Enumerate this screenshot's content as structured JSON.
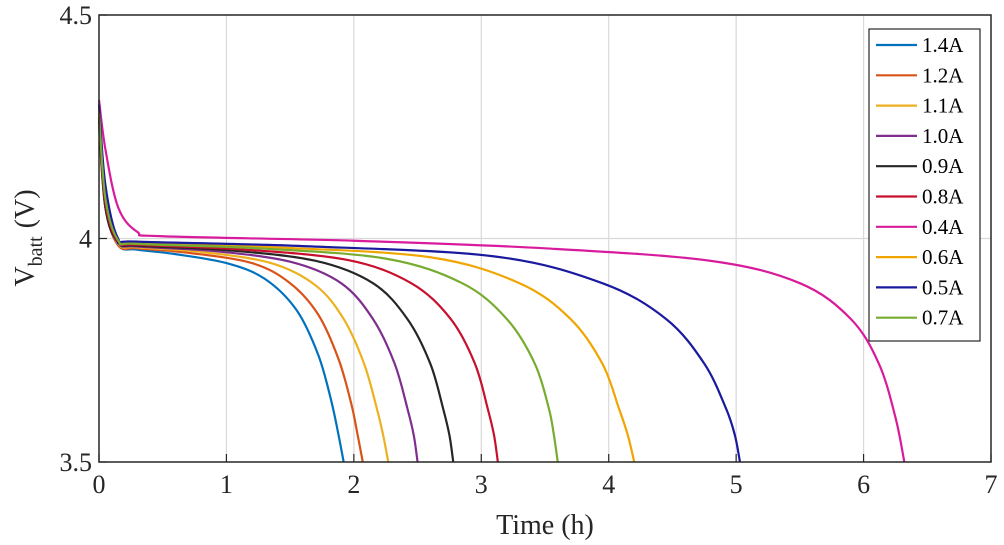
{
  "chart_data": {
    "type": "line",
    "xlabel": "Time (h)",
    "ylabel": {
      "main": "V",
      "sub": "batt",
      "unit": "(V)"
    },
    "xlim": [
      0,
      7
    ],
    "ylim": [
      3.5,
      4.5
    ],
    "xticks": [
      "0",
      "1",
      "2",
      "3",
      "4",
      "5",
      "6",
      "7"
    ],
    "yticks": [
      "3.5",
      "4",
      "4.5"
    ],
    "grid": true,
    "legend_position": "top-right",
    "series": [
      {
        "name": "1.4A",
        "color": "#0072BD",
        "end_time": 1.92,
        "x": [
          0,
          0.05,
          0.15,
          0.3,
          0.6,
          1.0,
          1.3,
          1.55,
          1.72,
          1.82,
          1.88,
          1.92
        ],
        "y": [
          4.25,
          4.07,
          3.985,
          3.975,
          3.965,
          3.945,
          3.91,
          3.84,
          3.74,
          3.64,
          3.56,
          3.5
        ]
      },
      {
        "name": "1.2A",
        "color": "#D95319",
        "end_time": 2.07,
        "x": [
          0,
          0.05,
          0.15,
          0.3,
          0.7,
          1.2,
          1.5,
          1.72,
          1.88,
          1.98,
          2.03,
          2.07
        ],
        "y": [
          4.26,
          4.07,
          3.985,
          3.978,
          3.968,
          3.945,
          3.9,
          3.83,
          3.73,
          3.63,
          3.56,
          3.5
        ]
      },
      {
        "name": "1.1A",
        "color": "#EDB120",
        "end_time": 2.27,
        "x": [
          0,
          0.05,
          0.15,
          0.3,
          0.8,
          1.35,
          1.7,
          1.92,
          2.08,
          2.18,
          2.23,
          2.27
        ],
        "y": [
          4.26,
          4.07,
          3.988,
          3.98,
          3.97,
          3.945,
          3.895,
          3.82,
          3.72,
          3.62,
          3.56,
          3.5
        ]
      },
      {
        "name": "1.0A",
        "color": "#7E2F8E",
        "end_time": 2.5,
        "x": [
          0,
          0.05,
          0.15,
          0.3,
          0.9,
          1.5,
          1.9,
          2.15,
          2.32,
          2.42,
          2.47,
          2.5
        ],
        "y": [
          4.27,
          4.07,
          3.99,
          3.982,
          3.972,
          3.948,
          3.9,
          3.82,
          3.72,
          3.62,
          3.56,
          3.5
        ]
      },
      {
        "name": "0.9A",
        "color": "#262626",
        "end_time": 2.78,
        "x": [
          0,
          0.05,
          0.15,
          0.3,
          1.0,
          1.7,
          2.15,
          2.42,
          2.6,
          2.7,
          2.75,
          2.78
        ],
        "y": [
          4.27,
          4.07,
          3.992,
          3.984,
          3.974,
          3.95,
          3.9,
          3.82,
          3.72,
          3.62,
          3.56,
          3.5
        ]
      },
      {
        "name": "0.8A",
        "color": "#C8102E",
        "end_time": 3.13,
        "x": [
          0,
          0.05,
          0.15,
          0.3,
          1.1,
          1.95,
          2.45,
          2.76,
          2.95,
          3.05,
          3.1,
          3.13
        ],
        "y": [
          4.28,
          4.08,
          3.994,
          3.986,
          3.976,
          3.952,
          3.9,
          3.82,
          3.72,
          3.62,
          3.56,
          3.5
        ]
      },
      {
        "name": "0.4A",
        "color": "#D81B9C",
        "end_time": 6.32,
        "x": [
          0,
          0.05,
          0.15,
          0.3,
          0.5,
          2.0,
          3.5,
          4.8,
          5.5,
          5.9,
          6.12,
          6.25,
          6.32
        ],
        "y": [
          4.31,
          4.2,
          4.07,
          4.015,
          4.005,
          3.995,
          3.978,
          3.95,
          3.9,
          3.82,
          3.72,
          3.6,
          3.5
        ]
      },
      {
        "name": "0.6A",
        "color": "#F0A500",
        "end_time": 4.2,
        "x": [
          0,
          0.05,
          0.15,
          0.3,
          1.4,
          2.6,
          3.3,
          3.7,
          3.95,
          4.08,
          4.15,
          4.2
        ],
        "y": [
          4.29,
          4.1,
          3.998,
          3.99,
          3.98,
          3.958,
          3.9,
          3.82,
          3.72,
          3.62,
          3.56,
          3.5
        ]
      },
      {
        "name": "0.5A",
        "color": "#1A1A9E",
        "end_time": 5.03,
        "x": [
          0,
          0.05,
          0.15,
          0.3,
          1.6,
          3.1,
          3.95,
          4.45,
          4.75,
          4.92,
          4.99,
          5.03
        ],
        "y": [
          4.3,
          4.12,
          4.0,
          3.993,
          3.983,
          3.96,
          3.9,
          3.82,
          3.72,
          3.62,
          3.56,
          3.5
        ]
      },
      {
        "name": "0.7A",
        "color": "#77AC30",
        "end_time": 3.6,
        "x": [
          0,
          0.05,
          0.15,
          0.3,
          1.25,
          2.25,
          2.85,
          3.2,
          3.42,
          3.53,
          3.57,
          3.6
        ],
        "y": [
          4.28,
          4.09,
          3.996,
          3.988,
          3.978,
          3.955,
          3.9,
          3.82,
          3.72,
          3.62,
          3.56,
          3.5
        ]
      }
    ]
  }
}
